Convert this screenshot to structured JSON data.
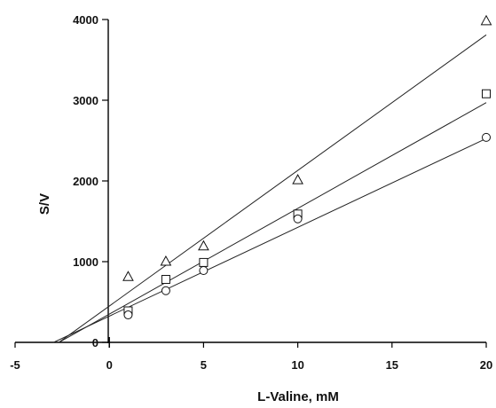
{
  "chart_data": {
    "type": "scatter",
    "title": "",
    "xlabel": "L-Valine, mM",
    "ylabel": "S/V",
    "xlim": [
      -5,
      20
    ],
    "ylim": [
      0,
      4000
    ],
    "x_ticks": [
      -5,
      0,
      5,
      10,
      15,
      20
    ],
    "x_tick_labels": [
      "-5",
      "0",
      "5",
      "10",
      "15",
      "20"
    ],
    "y_ticks": [
      0,
      1000,
      2000,
      3000,
      4000
    ],
    "y_tick_labels": [
      "0",
      "1000",
      "2000",
      "3000",
      "4000"
    ],
    "grid": false,
    "legend": "none",
    "series": [
      {
        "marker": "triangle",
        "x": [
          1,
          3,
          5,
          10,
          20
        ],
        "y": [
          810,
          1000,
          1190,
          2010,
          3980
        ],
        "fit": {
          "slope": 168,
          "intercept": 450
        }
      },
      {
        "marker": "square",
        "x": [
          1,
          3,
          5,
          10,
          20
        ],
        "y": [
          390,
          780,
          990,
          1590,
          3080
        ],
        "fit": {
          "slope": 131,
          "intercept": 350
        }
      },
      {
        "marker": "circle",
        "x": [
          1,
          3,
          5,
          10,
          20
        ],
        "y": [
          340,
          640,
          890,
          1530,
          2540
        ],
        "fit": {
          "slope": 110,
          "intercept": 325
        }
      }
    ]
  }
}
